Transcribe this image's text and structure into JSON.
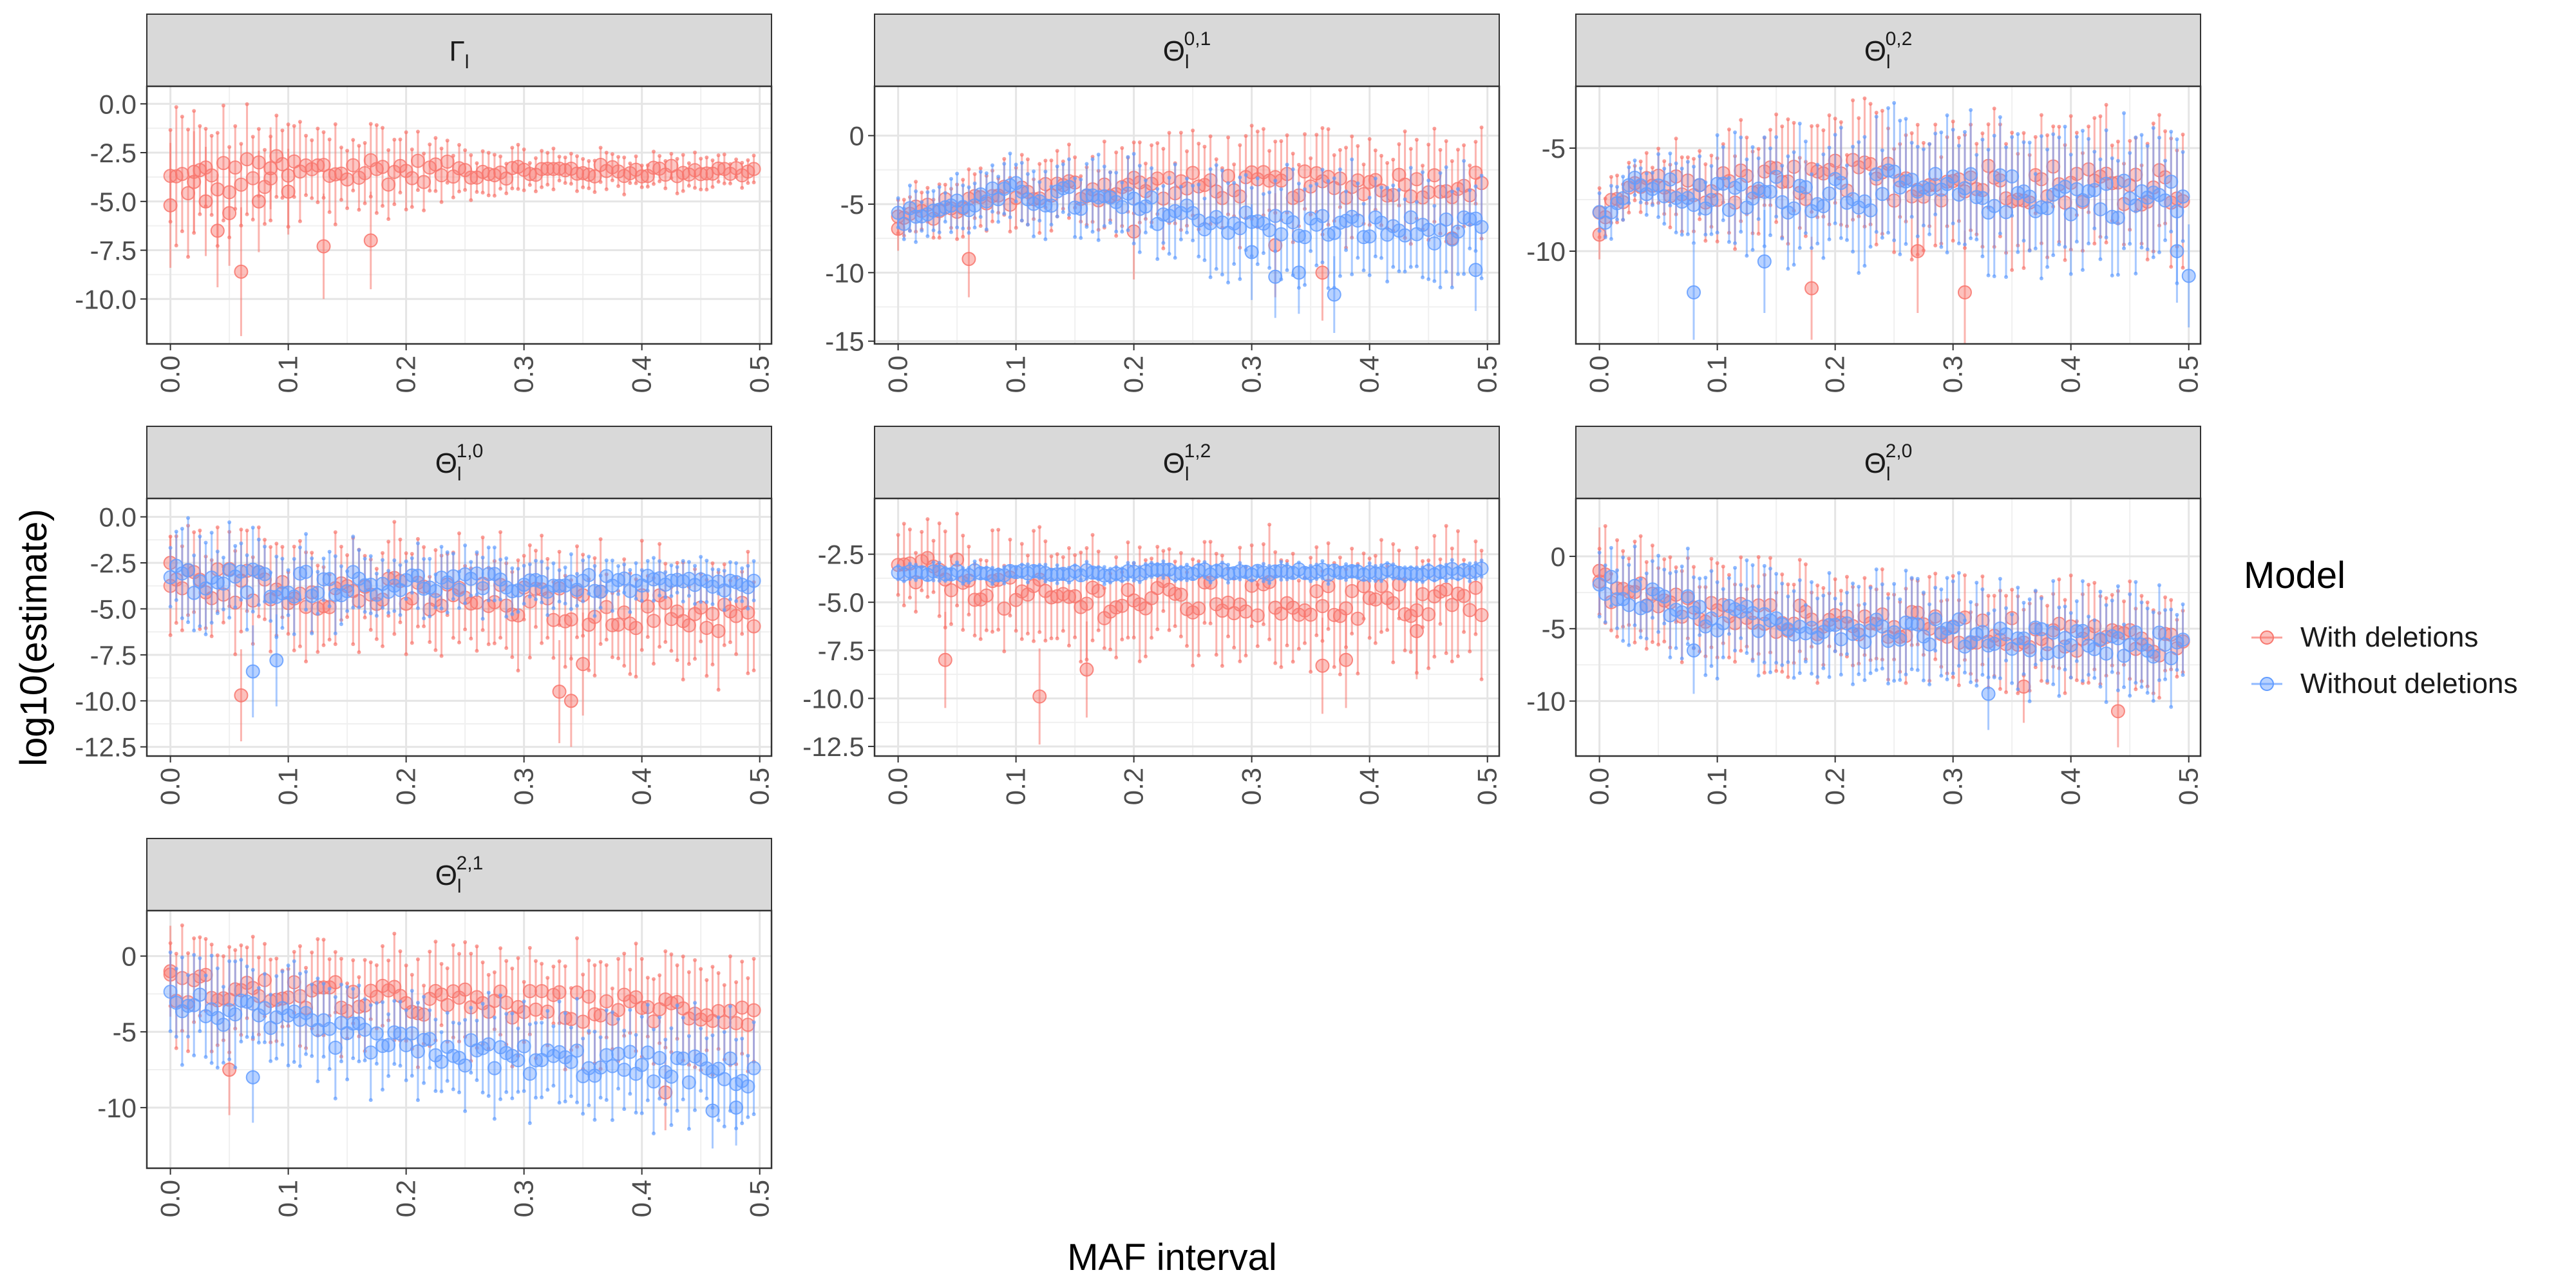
{
  "figure": {
    "xlabel": "MAF interval",
    "ylabel": "log10(estimate)",
    "legend_title": "Model",
    "legend_placement": "right",
    "grid": true
  },
  "legend": [
    {
      "name": "With deletions",
      "color": "#f8766d"
    },
    {
      "name": "Without deletions",
      "color": "#619cff"
    }
  ],
  "chart_data": [
    {
      "type": "scatter",
      "panel": "Gamma_l",
      "title": {
        "base": "Γ",
        "sub": "l",
        "sup": ""
      },
      "xlim": [
        -0.02,
        0.51
      ],
      "ylim": [
        -12.3,
        0.9
      ],
      "xticks": [
        0.0,
        0.1,
        0.2,
        0.3,
        0.4,
        0.5
      ],
      "yticks": [
        -10.0,
        -7.5,
        -5.0,
        -2.5,
        0.0
      ],
      "ytick_labels": [
        "-10.0",
        "-7.5",
        "-5.0",
        "-2.5",
        "0.0"
      ],
      "series": [
        {
          "name": "With deletions",
          "x_start": 0.0,
          "x_step": 0.005,
          "n": 100,
          "points": [
            [
              0.0,
              -5.2,
              3.2
            ],
            [
              0.02,
              -4.0,
              2.6
            ],
            [
              0.03,
              -5.0,
              2.8
            ],
            [
              0.04,
              -6.5,
              2.9
            ],
            [
              0.05,
              -5.6,
              2.7
            ],
            [
              0.06,
              -8.6,
              3.3
            ],
            [
              0.075,
              -5.0,
              2.6
            ],
            [
              0.085,
              -3.3,
              2.1
            ],
            [
              0.13,
              -7.3,
              2.7
            ],
            [
              0.17,
              -7.0,
              2.5
            ],
            [
              0.1,
              -4.5,
              2.2
            ]
          ],
          "trend": [
            [
              0.0,
              -4.0,
              3.0
            ],
            [
              0.08,
              -3.6,
              2.4
            ],
            [
              0.17,
              -3.4,
              2.1
            ],
            [
              0.25,
              -3.45,
              1.0
            ],
            [
              0.5,
              -3.45,
              0.7
            ]
          ]
        }
      ]
    },
    {
      "type": "scatter",
      "panel": "Theta_l_0_1",
      "title": {
        "base": "Θ",
        "sub": "l",
        "sup": "0,1"
      },
      "xlim": [
        -0.02,
        0.51
      ],
      "ylim": [
        -15.2,
        3.6
      ],
      "xticks": [
        0.0,
        0.1,
        0.2,
        0.3,
        0.4,
        0.5
      ],
      "yticks": [
        -15,
        -10,
        -5,
        0
      ],
      "ytick_labels": [
        "-15",
        "-10",
        "-5",
        "0"
      ],
      "series": [
        {
          "name": "With deletions",
          "n": 100,
          "points": [
            [
              0.0,
              -6.8,
              1.6
            ],
            [
              0.06,
              -9.0,
              2.8
            ],
            [
              0.2,
              -7.0,
              3.5
            ],
            [
              0.32,
              -8.0,
              3.8
            ],
            [
              0.36,
              -10.0,
              3.5
            ],
            [
              0.47,
              -7.5,
              3.5
            ]
          ],
          "trend": [
            [
              0.0,
              -6.0,
              1.5
            ],
            [
              0.1,
              -4.2,
              2.0
            ],
            [
              0.2,
              -3.7,
              3.0
            ],
            [
              0.5,
              -3.5,
              3.5
            ]
          ]
        },
        {
          "name": "Without deletions",
          "n": 100,
          "points": [
            [
              0.3,
              -8.5,
              3.5
            ],
            [
              0.32,
              -10.3,
              3.0
            ],
            [
              0.34,
              -10.0,
              3.0
            ],
            [
              0.37,
              -11.6,
              2.8
            ],
            [
              0.49,
              -9.8,
              3.0
            ]
          ],
          "trend": [
            [
              0.0,
              -6.0,
              1.5
            ],
            [
              0.1,
              -4.2,
              2.0
            ],
            [
              0.2,
              -5.2,
              3.0
            ],
            [
              0.3,
              -6.5,
              3.5
            ],
            [
              0.5,
              -7.0,
              3.5
            ]
          ]
        }
      ]
    },
    {
      "type": "scatter",
      "panel": "Theta_l_0_2",
      "title": {
        "base": "Θ",
        "sub": "l",
        "sup": "0,2"
      },
      "xlim": [
        -0.02,
        0.51
      ],
      "ylim": [
        -14.5,
        -2.0
      ],
      "xticks": [
        0.0,
        0.1,
        0.2,
        0.3,
        0.4,
        0.5
      ],
      "yticks": [
        -10,
        -5
      ],
      "ytick_labels": [
        "-10",
        "-5"
      ],
      "series": [
        {
          "name": "With deletions",
          "n": 100,
          "points": [
            [
              0.0,
              -9.2,
              1.2
            ],
            [
              0.18,
              -11.8,
              2.5
            ],
            [
              0.31,
              -12.0,
              3.0
            ],
            [
              0.27,
              -10.0,
              3.0
            ]
          ],
          "trend": [
            [
              0.0,
              -8.5,
              1.2
            ],
            [
              0.03,
              -6.8,
              1.0
            ],
            [
              0.1,
              -7.0,
              2.2
            ],
            [
              0.2,
              -6.5,
              2.8
            ],
            [
              0.5,
              -6.8,
              3.0
            ]
          ]
        },
        {
          "name": "Without deletions",
          "n": 100,
          "points": [
            [
              0.08,
              -12.0,
              2.3
            ],
            [
              0.14,
              -10.5,
              2.5
            ],
            [
              0.49,
              -10.0,
              2.5
            ],
            [
              0.5,
              -11.2,
              2.5
            ]
          ],
          "trend": [
            [
              0.0,
              -8.5,
              1.2
            ],
            [
              0.03,
              -6.8,
              1.0
            ],
            [
              0.1,
              -7.5,
              2.2
            ],
            [
              0.2,
              -7.0,
              2.8
            ],
            [
              0.5,
              -7.5,
              3.0
            ]
          ]
        }
      ]
    },
    {
      "type": "scatter",
      "panel": "Theta_l_1_0",
      "title": {
        "base": "Θ",
        "sub": "l",
        "sup": "1,0"
      },
      "xlim": [
        -0.02,
        0.51
      ],
      "ylim": [
        -13.0,
        1.0
      ],
      "xticks": [
        0.0,
        0.1,
        0.2,
        0.3,
        0.4,
        0.5
      ],
      "yticks": [
        -12.5,
        -10.0,
        -7.5,
        -5.0,
        -2.5,
        0.0
      ],
      "ytick_labels": [
        "-12.5",
        "-10.0",
        "-7.5",
        "-5.0",
        "-2.5",
        "0.0"
      ],
      "series": [
        {
          "name": "With deletions",
          "n": 100,
          "points": [
            [
              0.0,
              -2.5,
              1.5
            ],
            [
              0.06,
              -9.7,
              2.5
            ],
            [
              0.33,
              -9.5,
              2.8
            ],
            [
              0.35,
              -8.0,
              2.8
            ],
            [
              0.34,
              -10.0,
              2.5
            ]
          ],
          "trend": [
            [
              0.0,
              -3.5,
              2.5
            ],
            [
              0.5,
              -5.5,
              2.8
            ]
          ]
        },
        {
          "name": "Without deletions",
          "n": 100,
          "points": [
            [
              0.07,
              -8.4,
              2.5
            ],
            [
              0.09,
              -7.8,
              2.5
            ]
          ],
          "trend": [
            [
              0.0,
              -3.5,
              2.5
            ],
            [
              0.1,
              -3.6,
              2.0
            ],
            [
              0.2,
              -3.6,
              1.5
            ],
            [
              0.5,
              -3.7,
              1.0
            ]
          ]
        }
      ]
    },
    {
      "type": "scatter",
      "panel": "Theta_l_1_2",
      "title": {
        "base": "Θ",
        "sub": "l",
        "sup": "1,2"
      },
      "xlim": [
        -0.02,
        0.51
      ],
      "ylim": [
        -13.0,
        0.4
      ],
      "xticks": [
        0.0,
        0.1,
        0.2,
        0.3,
        0.4,
        0.5
      ],
      "yticks": [
        -12.5,
        -10.0,
        -7.5,
        -5.0,
        -2.5
      ],
      "ytick_labels": [
        "-12.5",
        "-10.0",
        "-7.5",
        "-5.0",
        "-2.5"
      ],
      "series": [
        {
          "name": "With deletions",
          "n": 100,
          "points": [
            [
              0.04,
              -8.0,
              2.5
            ],
            [
              0.12,
              -9.9,
              2.5
            ],
            [
              0.16,
              -8.5,
              2.5
            ],
            [
              0.36,
              -8.3,
              2.5
            ],
            [
              0.38,
              -8.0,
              2.5
            ],
            [
              0.44,
              -6.5,
              2.5
            ]
          ],
          "trend": [
            [
              0.0,
              -3.5,
              2.0
            ],
            [
              0.05,
              -3.6,
              2.3
            ],
            [
              0.1,
              -4.8,
              2.5
            ],
            [
              0.5,
              -5.0,
              2.8
            ]
          ]
        },
        {
          "name": "Without deletions",
          "n": 100,
          "points": [],
          "trend": [
            [
              0.0,
              -3.5,
              0.4
            ],
            [
              0.5,
              -3.4,
              0.4
            ]
          ]
        }
      ]
    },
    {
      "type": "scatter",
      "panel": "Theta_l_2_0",
      "title": {
        "base": "Θ",
        "sub": "l",
        "sup": "2,0"
      },
      "xlim": [
        -0.02,
        0.51
      ],
      "ylim": [
        -13.8,
        4.0
      ],
      "xticks": [
        0.0,
        0.1,
        0.2,
        0.3,
        0.4,
        0.5
      ],
      "yticks": [
        -10,
        -5,
        0
      ],
      "ytick_labels": [
        "-10",
        "-5",
        "0"
      ],
      "series": [
        {
          "name": "With deletions",
          "n": 100,
          "points": [
            [
              0.0,
              -1.0,
              3.0
            ],
            [
              0.44,
              -10.7,
              2.5
            ],
            [
              0.36,
              -9.0,
              2.5
            ]
          ],
          "trend": [
            [
              0.0,
              -2.0,
              3.0
            ],
            [
              0.1,
              -4.0,
              3.0
            ],
            [
              0.5,
              -6.0,
              3.0
            ]
          ]
        },
        {
          "name": "Without deletions",
          "n": 100,
          "points": [
            [
              0.33,
              -9.5,
              2.5
            ],
            [
              0.08,
              -6.5,
              3.0
            ]
          ],
          "trend": [
            [
              0.0,
              -2.0,
              3.0
            ],
            [
              0.1,
              -4.3,
              3.0
            ],
            [
              0.5,
              -6.3,
              3.0
            ]
          ]
        }
      ]
    },
    {
      "type": "scatter",
      "panel": "Theta_l_2_1",
      "title": {
        "base": "Θ",
        "sub": "l",
        "sup": "2,1"
      },
      "xlim": [
        -0.02,
        0.51
      ],
      "ylim": [
        -14.0,
        3.0
      ],
      "xticks": [
        0.0,
        0.1,
        0.2,
        0.3,
        0.4,
        0.5
      ],
      "yticks": [
        -10,
        -5,
        0
      ],
      "ytick_labels": [
        "-10",
        "-5",
        "0"
      ],
      "series": [
        {
          "name": "With deletions",
          "n": 100,
          "points": [
            [
              0.0,
              -1.0,
              3.0
            ],
            [
              0.05,
              -7.5,
              3.0
            ],
            [
              0.42,
              -9.0,
              2.5
            ]
          ],
          "trend": [
            [
              0.0,
              -2.0,
              3.0
            ],
            [
              0.1,
              -2.5,
              3.0
            ],
            [
              0.2,
              -3.0,
              3.0
            ],
            [
              0.5,
              -3.7,
              3.0
            ]
          ]
        },
        {
          "name": "Without deletions",
          "n": 100,
          "points": [
            [
              0.46,
              -10.2,
              2.5
            ],
            [
              0.48,
              -10.0,
              2.5
            ],
            [
              0.07,
              -8.0,
              3.0
            ]
          ],
          "trend": [
            [
              0.0,
              -3.0,
              3.0
            ],
            [
              0.1,
              -4.5,
              3.0
            ],
            [
              0.2,
              -6.0,
              3.0
            ],
            [
              0.3,
              -6.8,
              3.0
            ],
            [
              0.5,
              -7.8,
              3.0
            ]
          ]
        }
      ]
    }
  ]
}
